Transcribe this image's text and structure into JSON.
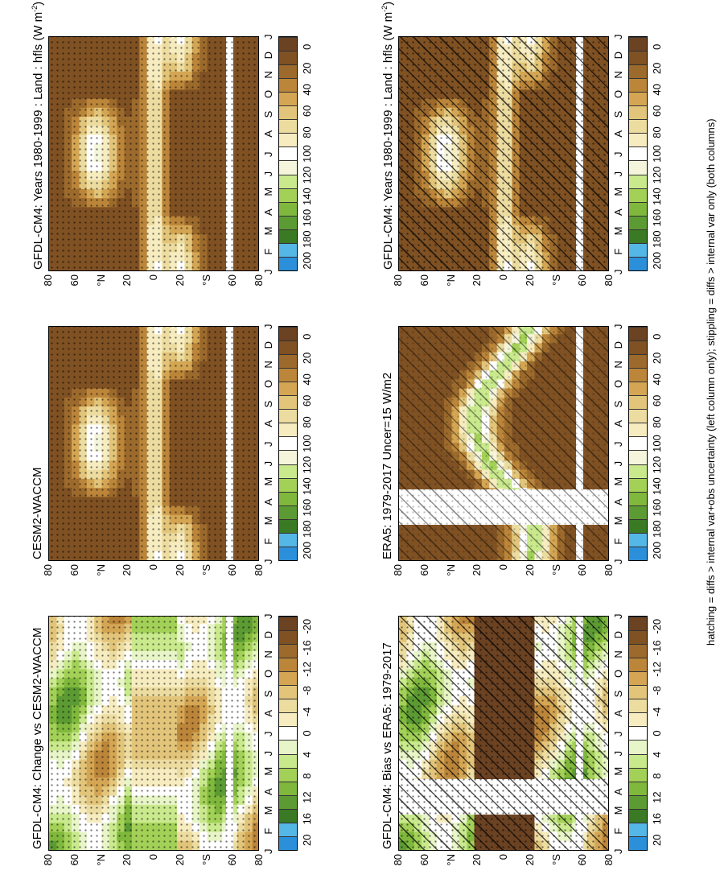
{
  "footnote": "hatching = diffs > internal var+obs uncertainty (left column only); stippling = diffs > internal var only (both columns)",
  "months": [
    "J",
    "F",
    "M",
    "A",
    "M",
    "J",
    "J",
    "A",
    "S",
    "O",
    "N",
    "D",
    "J"
  ],
  "lat_ticks": [
    "80",
    "60",
    "°N",
    "20",
    "0",
    "20",
    "°S",
    "60",
    "80"
  ],
  "palette_abs": [
    "#2b8fd9",
    "#55b7e6",
    "#3a7a24",
    "#5c9a33",
    "#7fb83c",
    "#a3d158",
    "#c9e98d",
    "#f5f5dc",
    "#ffffff",
    "#f6ecc0",
    "#eddca0",
    "#e2c57a",
    "#d4a654",
    "#bb853a",
    "#9c6a2c",
    "#7f5123",
    "#6b4222"
  ],
  "palette_diff": [
    "#2b8fd9",
    "#55b7e6",
    "#3a7a24",
    "#5c9a33",
    "#7fb83c",
    "#a3d158",
    "#c9e98d",
    "#e8f5c8",
    "#ffffff",
    "#f6ecc0",
    "#eddca0",
    "#e2c57a",
    "#d4a654",
    "#bb853a",
    "#9c6a2c",
    "#7f5123",
    "#6b4222"
  ],
  "cbar_abs_labels": [
    "200",
    "180",
    "160",
    "140",
    "120",
    "100",
    "80",
    "60",
    "40",
    "20",
    "0"
  ],
  "cbar_diff_labels": [
    "20",
    "16",
    "12",
    "8",
    "4",
    "0",
    "-4",
    "-8",
    "-12",
    "-16",
    "-20"
  ],
  "chart_data": [
    {
      "type": "heatmap",
      "title": "GFDL-CM4: Years 1980-1999 : Land : hfls (W m",
      "title_sup": "-2",
      "title_close": ")",
      "x": [
        "J",
        "F",
        "M",
        "A",
        "M",
        "J",
        "J",
        "A",
        "S",
        "O",
        "N",
        "D",
        "J"
      ],
      "y_ticks": [
        "80",
        "60",
        "°N",
        "20",
        "0",
        "20",
        "°S",
        "60",
        "80"
      ],
      "zlim": [
        0,
        200
      ],
      "colorbar": [
        "200",
        "180",
        "160",
        "140",
        "120",
        "100",
        "80",
        "60",
        "40",
        "20",
        "0"
      ]
    },
    {
      "type": "heatmap",
      "title": "ERA5: 1979-2017 Uncer=15 W/m2",
      "x": [
        "J",
        "F",
        "M",
        "A",
        "M",
        "J",
        "J",
        "A",
        "S",
        "O",
        "N",
        "D",
        "J"
      ],
      "y_ticks": [
        "80",
        "60",
        "°N",
        "20",
        "0",
        "20",
        "°S",
        "60",
        "80"
      ],
      "zlim": [
        0,
        200
      ],
      "colorbar": [
        "200",
        "180",
        "160",
        "140",
        "120",
        "100",
        "80",
        "60",
        "40",
        "20",
        "0"
      ]
    },
    {
      "type": "heatmap",
      "title": "GFDL-CM4: Bias vs ERA5: 1979-2017",
      "x": [
        "J",
        "F",
        "M",
        "A",
        "M",
        "J",
        "J",
        "A",
        "S",
        "O",
        "N",
        "D",
        "J"
      ],
      "y_ticks": [
        "80",
        "60",
        "°N",
        "20",
        "0",
        "20",
        "°S",
        "60",
        "80"
      ],
      "zlim": [
        -20,
        20
      ],
      "colorbar": [
        "20",
        "16",
        "12",
        "8",
        "4",
        "0",
        "-4",
        "-8",
        "-12",
        "-16",
        "-20"
      ]
    },
    {
      "type": "heatmap",
      "title": "GFDL-CM4: Years 1980-1999 : Land : hfls (W m",
      "title_sup": "-2",
      "title_close": ")",
      "x": [
        "J",
        "F",
        "M",
        "A",
        "M",
        "J",
        "J",
        "A",
        "S",
        "O",
        "N",
        "D",
        "J"
      ],
      "y_ticks": [
        "80",
        "60",
        "°N",
        "20",
        "0",
        "20",
        "°S",
        "60",
        "80"
      ],
      "zlim": [
        0,
        200
      ],
      "colorbar": [
        "200",
        "180",
        "160",
        "140",
        "120",
        "100",
        "80",
        "60",
        "40",
        "20",
        "0"
      ]
    },
    {
      "type": "heatmap",
      "title": "CESM2-WACCM",
      "x": [
        "J",
        "F",
        "M",
        "A",
        "M",
        "J",
        "J",
        "A",
        "S",
        "O",
        "N",
        "D",
        "J"
      ],
      "y_ticks": [
        "80",
        "60",
        "°N",
        "20",
        "0",
        "20",
        "°S",
        "60",
        "80"
      ],
      "zlim": [
        0,
        200
      ],
      "colorbar": [
        "200",
        "180",
        "160",
        "140",
        "120",
        "100",
        "80",
        "60",
        "40",
        "20",
        "0"
      ]
    },
    {
      "type": "heatmap",
      "title": "GFDL-CM4: Change vs CESM2-WACCM",
      "x": [
        "J",
        "F",
        "M",
        "A",
        "M",
        "J",
        "J",
        "A",
        "S",
        "O",
        "N",
        "D",
        "J"
      ],
      "y_ticks": [
        "80",
        "60",
        "°N",
        "20",
        "0",
        "20",
        "°S",
        "60",
        "80"
      ],
      "zlim": [
        -20,
        20
      ],
      "colorbar": [
        "20",
        "16",
        "12",
        "8",
        "4",
        "0",
        "-4",
        "-8",
        "-12",
        "-16",
        "-20"
      ]
    }
  ]
}
